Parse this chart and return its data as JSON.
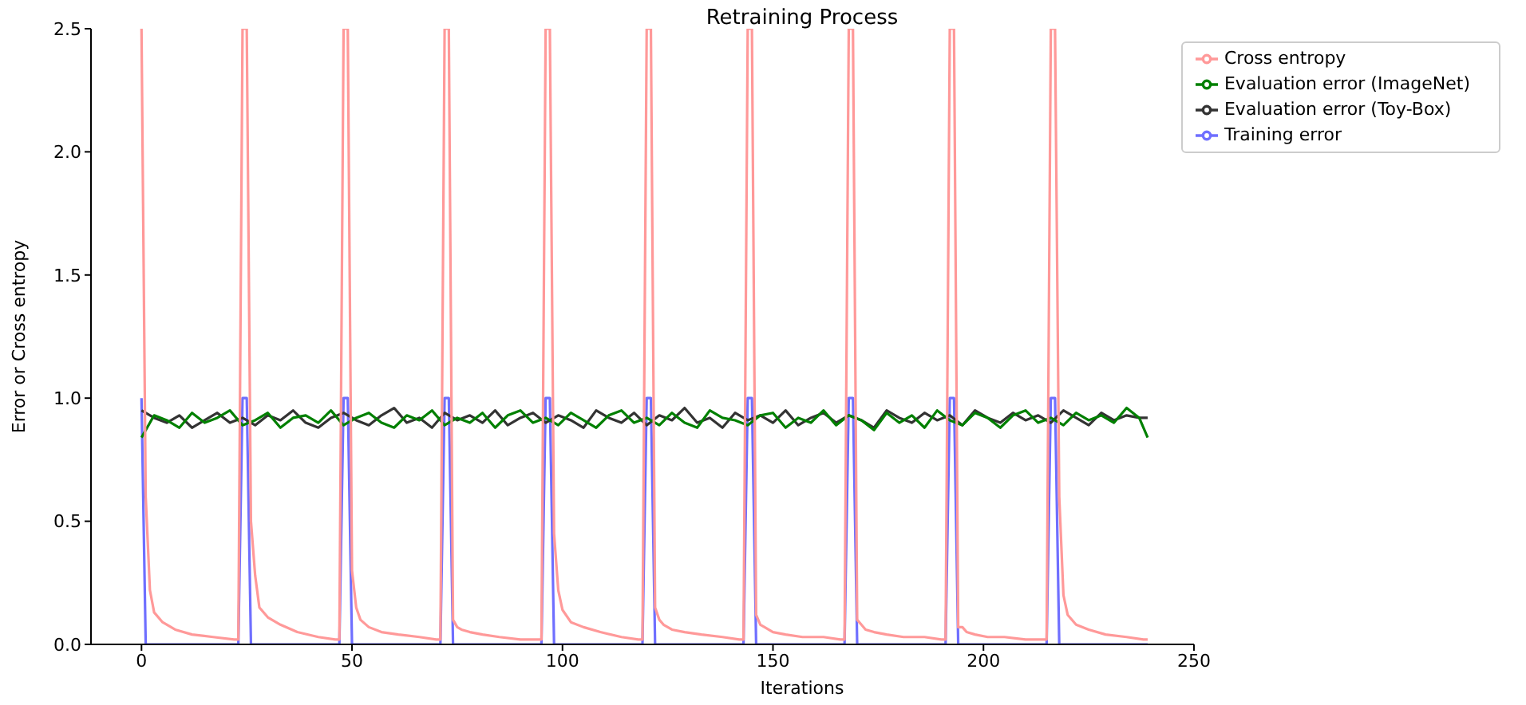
{
  "chart_data": {
    "type": "line",
    "title": "Retraining Process",
    "xlabel": "Iterations",
    "ylabel": "Error or Cross entropy",
    "xlim": [
      -12,
      250
    ],
    "xticks": [
      0,
      50,
      100,
      150,
      200,
      250
    ],
    "ylim": [
      0,
      2.5
    ],
    "yticks": [
      {
        "value": 0,
        "label": "0.0"
      },
      {
        "value": 0.5,
        "label": "0.5"
      },
      {
        "value": 1,
        "label": "1.0"
      },
      {
        "value": 1.5,
        "label": "1.5"
      },
      {
        "value": 2,
        "label": "2.0"
      },
      {
        "value": 2.5,
        "label": "2.5"
      }
    ],
    "grid": false,
    "legend": "top right",
    "marker": "none",
    "line_style": "solid",
    "series": [
      {
        "name": "Training error",
        "color": "#6f6fff",
        "x": [
          0,
          1,
          23,
          24,
          25,
          26,
          47,
          48,
          49,
          50,
          71,
          72,
          73,
          74,
          95,
          96,
          97,
          98,
          119,
          120,
          121,
          122,
          143,
          144,
          145,
          146,
          167,
          168,
          169,
          170,
          191,
          192,
          193,
          194,
          215,
          216,
          217,
          218,
          239
        ],
        "values": [
          1,
          0,
          0,
          1,
          1,
          0,
          0,
          1,
          1,
          0,
          0,
          1,
          1,
          0,
          0,
          1,
          1,
          0,
          0,
          1,
          1,
          0,
          0,
          1,
          1,
          0,
          0,
          1,
          1,
          0,
          0,
          1,
          1,
          0,
          0,
          1,
          1,
          0,
          0
        ]
      },
      {
        "name": "Evaluation error (Toy-Box)",
        "color": "#333333",
        "x": [
          0,
          3,
          6,
          9,
          12,
          15,
          18,
          21,
          24,
          27,
          30,
          33,
          36,
          39,
          42,
          45,
          48,
          51,
          54,
          57,
          60,
          63,
          66,
          69,
          72,
          75,
          78,
          81,
          84,
          87,
          90,
          93,
          96,
          99,
          102,
          105,
          108,
          111,
          114,
          117,
          120,
          123,
          126,
          129,
          132,
          135,
          138,
          141,
          144,
          147,
          150,
          153,
          156,
          159,
          162,
          165,
          168,
          171,
          174,
          177,
          180,
          183,
          186,
          189,
          192,
          195,
          198,
          201,
          204,
          207,
          210,
          213,
          216,
          219,
          222,
          225,
          228,
          231,
          234,
          237,
          239
        ],
        "values": [
          0.95,
          0.92,
          0.9,
          0.93,
          0.88,
          0.91,
          0.94,
          0.9,
          0.92,
          0.89,
          0.93,
          0.91,
          0.95,
          0.9,
          0.88,
          0.92,
          0.94,
          0.91,
          0.89,
          0.93,
          0.96,
          0.9,
          0.92,
          0.88,
          0.94,
          0.91,
          0.93,
          0.9,
          0.95,
          0.89,
          0.92,
          0.94,
          0.9,
          0.93,
          0.91,
          0.88,
          0.95,
          0.92,
          0.9,
          0.94,
          0.89,
          0.93,
          0.91,
          0.96,
          0.9,
          0.92,
          0.88,
          0.94,
          0.91,
          0.93,
          0.9,
          0.95,
          0.89,
          0.92,
          0.94,
          0.9,
          0.93,
          0.91,
          0.88,
          0.95,
          0.92,
          0.9,
          0.94,
          0.91,
          0.93,
          0.89,
          0.95,
          0.92,
          0.9,
          0.94,
          0.91,
          0.93,
          0.9,
          0.95,
          0.92,
          0.89,
          0.94,
          0.91,
          0.93,
          0.92,
          0.92
        ]
      },
      {
        "name": "Evaluation error (ImageNet)",
        "color": "#008000",
        "x": [
          0,
          3,
          6,
          9,
          12,
          15,
          18,
          21,
          24,
          27,
          30,
          33,
          36,
          39,
          42,
          45,
          48,
          51,
          54,
          57,
          60,
          63,
          66,
          69,
          72,
          75,
          78,
          81,
          84,
          87,
          90,
          93,
          96,
          99,
          102,
          105,
          108,
          111,
          114,
          117,
          120,
          123,
          126,
          129,
          132,
          135,
          138,
          141,
          144,
          147,
          150,
          153,
          156,
          159,
          162,
          165,
          168,
          171,
          174,
          177,
          180,
          183,
          186,
          189,
          192,
          195,
          198,
          201,
          204,
          207,
          210,
          213,
          216,
          219,
          222,
          225,
          228,
          231,
          234,
          237,
          239
        ],
        "values": [
          0.84,
          0.93,
          0.91,
          0.88,
          0.94,
          0.9,
          0.92,
          0.95,
          0.89,
          0.91,
          0.94,
          0.88,
          0.92,
          0.93,
          0.9,
          0.95,
          0.89,
          0.92,
          0.94,
          0.9,
          0.88,
          0.93,
          0.91,
          0.95,
          0.89,
          0.92,
          0.9,
          0.94,
          0.88,
          0.93,
          0.95,
          0.9,
          0.92,
          0.89,
          0.94,
          0.91,
          0.88,
          0.93,
          0.95,
          0.9,
          0.92,
          0.89,
          0.94,
          0.9,
          0.88,
          0.95,
          0.92,
          0.91,
          0.89,
          0.93,
          0.94,
          0.88,
          0.92,
          0.9,
          0.95,
          0.89,
          0.93,
          0.91,
          0.87,
          0.94,
          0.9,
          0.93,
          0.88,
          0.95,
          0.91,
          0.89,
          0.94,
          0.92,
          0.88,
          0.93,
          0.95,
          0.9,
          0.92,
          0.89,
          0.94,
          0.91,
          0.93,
          0.9,
          0.96,
          0.92,
          0.84
        ]
      },
      {
        "name": "Cross entropy",
        "color": "#ff9999",
        "x": [
          0,
          1,
          2,
          3,
          5,
          8,
          12,
          17,
          22,
          23,
          24,
          25,
          26,
          27,
          28,
          30,
          33,
          37,
          42,
          46,
          47,
          48,
          49,
          50,
          51,
          52,
          54,
          57,
          61,
          66,
          70,
          71,
          72,
          73,
          74,
          75,
          76,
          78,
          81,
          85,
          90,
          94,
          95,
          96,
          97,
          98,
          99,
          100,
          102,
          105,
          109,
          114,
          118,
          119,
          120,
          121,
          122,
          123,
          124,
          126,
          129,
          133,
          138,
          142,
          143,
          144,
          145,
          146,
          147,
          148,
          150,
          153,
          157,
          162,
          166,
          167,
          168,
          169,
          170,
          171,
          172,
          174,
          177,
          181,
          186,
          190,
          191,
          192,
          193,
          194,
          195,
          196,
          198,
          201,
          205,
          210,
          214,
          215,
          216,
          217,
          218,
          219,
          220,
          222,
          225,
          229,
          234,
          238,
          239
        ],
        "values": [
          2.5,
          0.6,
          0.22,
          0.13,
          0.09,
          0.06,
          0.04,
          0.03,
          0.02,
          0.02,
          2.5,
          2.5,
          0.5,
          0.28,
          0.15,
          0.11,
          0.08,
          0.05,
          0.03,
          0.02,
          0.02,
          2.5,
          2.5,
          0.3,
          0.15,
          0.1,
          0.07,
          0.05,
          0.04,
          0.03,
          0.02,
          0.02,
          2.5,
          2.5,
          0.1,
          0.07,
          0.06,
          0.05,
          0.04,
          0.03,
          0.02,
          0.02,
          0.02,
          2.5,
          2.5,
          0.45,
          0.22,
          0.14,
          0.09,
          0.07,
          0.05,
          0.03,
          0.02,
          0.02,
          2.5,
          2.5,
          0.15,
          0.1,
          0.08,
          0.06,
          0.05,
          0.04,
          0.03,
          0.02,
          0.02,
          2.5,
          2.5,
          0.12,
          0.08,
          0.07,
          0.05,
          0.04,
          0.03,
          0.03,
          0.02,
          0.02,
          2.5,
          2.5,
          0.1,
          0.08,
          0.06,
          0.05,
          0.04,
          0.03,
          0.03,
          0.02,
          0.02,
          2.5,
          2.5,
          0.07,
          0.07,
          0.05,
          0.04,
          0.03,
          0.03,
          0.02,
          0.02,
          0.02,
          2.5,
          2.5,
          0.6,
          0.2,
          0.12,
          0.08,
          0.06,
          0.04,
          0.03,
          0.02,
          0.02
        ]
      }
    ]
  }
}
